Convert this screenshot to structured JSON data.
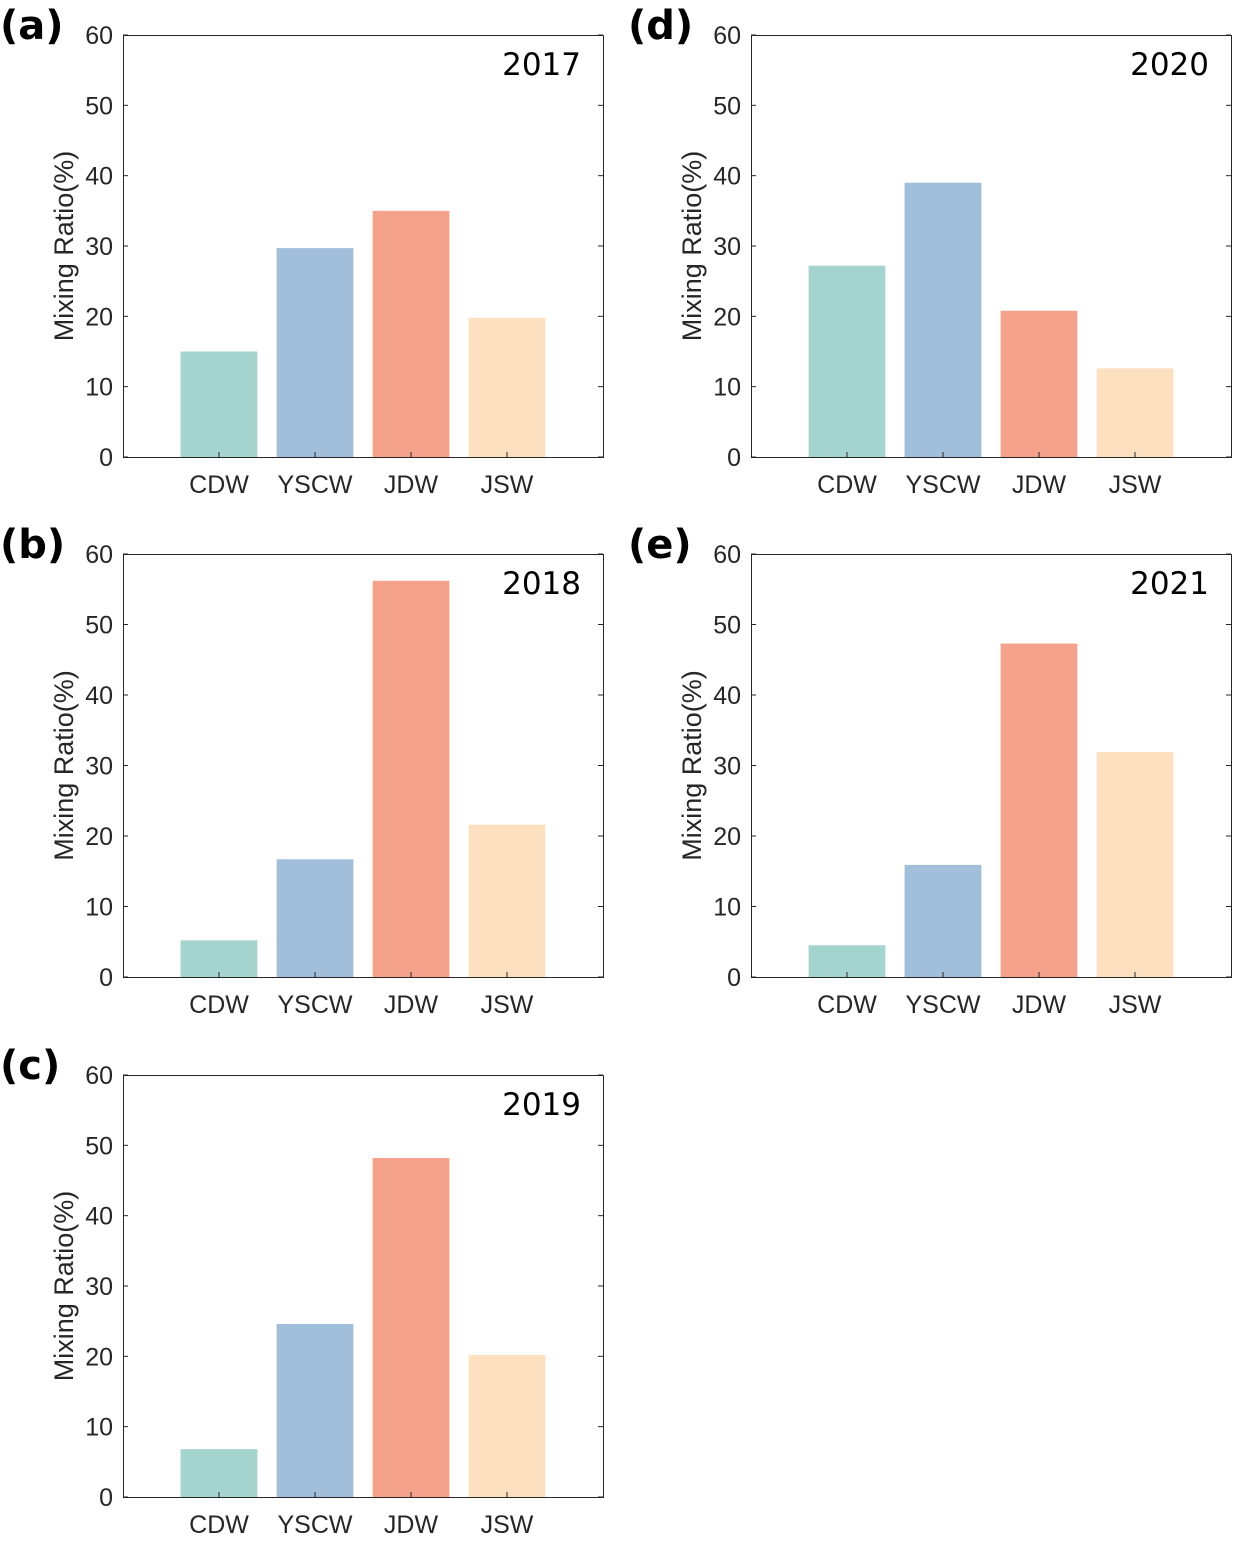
{
  "figure": {
    "panels_order": [
      "a",
      "b",
      "c",
      "d",
      "e"
    ]
  },
  "chart_data": [
    {
      "type": "bar",
      "panel_label": "(a)",
      "year": "2017",
      "categories": [
        "CDW",
        "YSCW",
        "JDW",
        "JSW"
      ],
      "values": [
        15.0,
        29.7,
        35.0,
        19.8
      ],
      "colors": [
        "#a5d4cf",
        "#a1bedb",
        "#f5a28c",
        "#fde0bf"
      ],
      "xlabel": "",
      "ylabel": "Mixing Ratio(%)",
      "ylim": [
        0,
        60
      ],
      "yticks": [
        "0",
        "10",
        "20",
        "30",
        "40",
        "50",
        "60"
      ]
    },
    {
      "type": "bar",
      "panel_label": "(b)",
      "year": "2018",
      "categories": [
        "CDW",
        "YSCW",
        "JDW",
        "JSW"
      ],
      "values": [
        5.2,
        16.7,
        56.2,
        21.6
      ],
      "colors": [
        "#a5d4cf",
        "#a1bedb",
        "#f5a28c",
        "#fde0bf"
      ],
      "xlabel": "",
      "ylabel": "Mixing Ratio(%)",
      "ylim": [
        0,
        60
      ],
      "yticks": [
        "0",
        "10",
        "20",
        "30",
        "40",
        "50",
        "60"
      ]
    },
    {
      "type": "bar",
      "panel_label": "(c)",
      "year": "2019",
      "categories": [
        "CDW",
        "YSCW",
        "JDW",
        "JSW"
      ],
      "values": [
        6.8,
        24.6,
        48.2,
        20.2
      ],
      "colors": [
        "#a5d4cf",
        "#a1bedb",
        "#f5a28c",
        "#fde0bf"
      ],
      "xlabel": "",
      "ylabel": "Mixing Ratio(%)",
      "ylim": [
        0,
        60
      ],
      "yticks": [
        "0",
        "10",
        "20",
        "30",
        "40",
        "50",
        "60"
      ]
    },
    {
      "type": "bar",
      "panel_label": "(d)",
      "year": "2020",
      "categories": [
        "CDW",
        "YSCW",
        "JDW",
        "JSW"
      ],
      "values": [
        27.2,
        39.0,
        20.8,
        12.6
      ],
      "colors": [
        "#a5d4cf",
        "#a1bedb",
        "#f5a28c",
        "#fde0bf"
      ],
      "xlabel": "",
      "ylabel": "Mixing Ratio(%)",
      "ylim": [
        0,
        60
      ],
      "yticks": [
        "0",
        "10",
        "20",
        "30",
        "40",
        "50",
        "60"
      ]
    },
    {
      "type": "bar",
      "panel_label": "(e)",
      "year": "2021",
      "categories": [
        "CDW",
        "YSCW",
        "JDW",
        "JSW"
      ],
      "values": [
        4.5,
        15.9,
        47.3,
        31.9
      ],
      "colors": [
        "#a5d4cf",
        "#a1bedb",
        "#f5a28c",
        "#fde0bf"
      ],
      "xlabel": "",
      "ylabel": "Mixing Ratio(%)",
      "ylim": [
        0,
        60
      ],
      "yticks": [
        "0",
        "10",
        "20",
        "30",
        "40",
        "50",
        "60"
      ]
    }
  ]
}
